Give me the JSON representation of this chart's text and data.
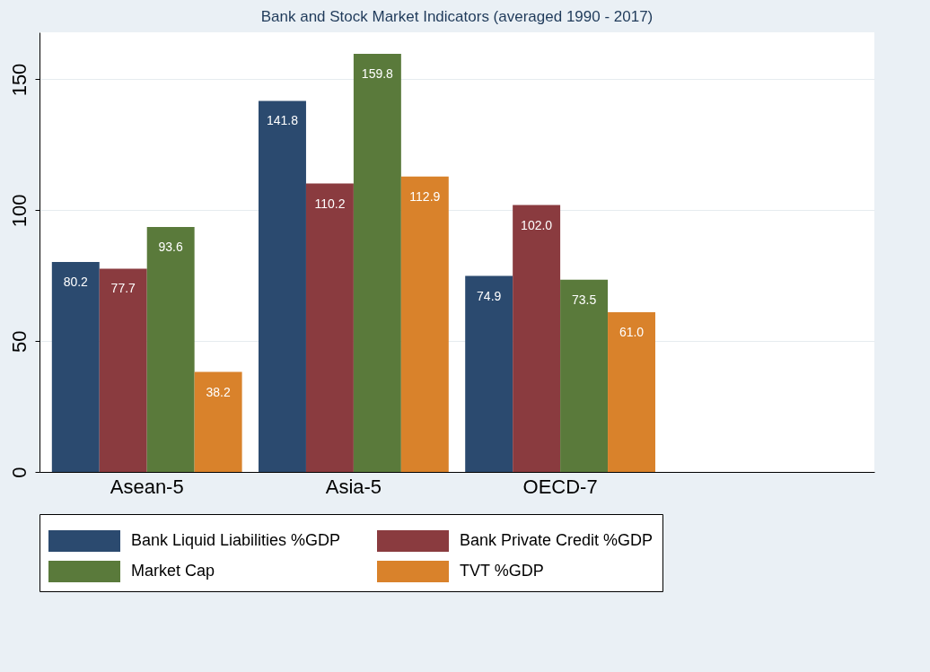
{
  "chart_data": {
    "type": "bar",
    "title": "Bank and Stock Market Indicators (averaged 1990 - 2017)",
    "categories": [
      "Asean-5",
      "Asia-5",
      "OECD-7",
      null
    ],
    "series": [
      {
        "name": "Bank Liquid Liabilities %GDP",
        "color": "#2b4a6f",
        "values": [
          80.2,
          141.8,
          74.9,
          0
        ],
        "value_labels": [
          "80.2",
          "141.8",
          "74.9",
          null
        ]
      },
      {
        "name": "Bank Private Credit %GDP",
        "color": "#8a3b3f",
        "values": [
          77.7,
          110.2,
          102.0,
          0
        ],
        "value_labels": [
          "77.7",
          "110.2",
          "102.0",
          null
        ]
      },
      {
        "name": "Market Cap",
        "color": "#5a7a3b",
        "values": [
          93.6,
          159.8,
          73.5,
          0
        ],
        "value_labels": [
          "93.6",
          "159.8",
          "73.5",
          null
        ]
      },
      {
        "name": "TVT %GDP",
        "color": "#d9822b",
        "values": [
          38.2,
          112.9,
          61.0,
          0
        ],
        "value_labels": [
          "38.2",
          "112.9",
          "61.0",
          null
        ]
      }
    ],
    "ylim": [
      0,
      168
    ],
    "yticks": [
      0,
      50,
      100,
      150
    ],
    "grid": "y",
    "legend": "bottom"
  }
}
